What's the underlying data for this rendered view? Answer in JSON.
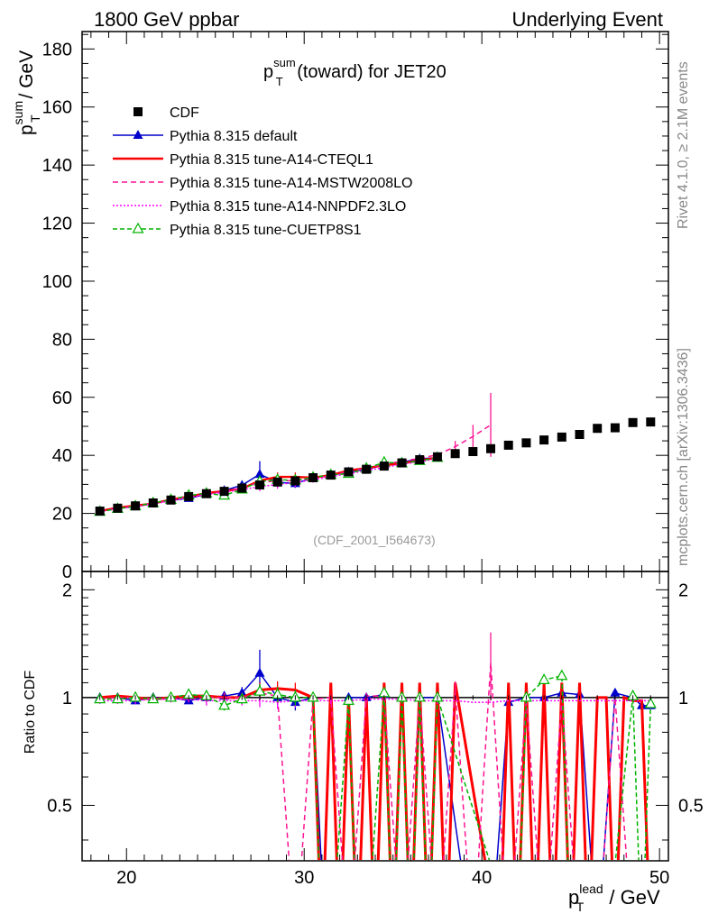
{
  "header": {
    "left": "1800 GeV ppbar",
    "right": "Underlying Event"
  },
  "side_labels": {
    "rivet": "Rivet 4.1.0, ≥ 2.1M events",
    "mcplots": "mcplots.cern.ch [arXiv:1306.3436]"
  },
  "colors": {
    "cdf": "#000000",
    "default": "#0000cc",
    "cteql1": "#ff0000",
    "mstw": "#ff1493",
    "nnpdf": "#ff00ff",
    "cuetp": "#00b300"
  },
  "chart_data": {
    "type": "line",
    "title": {
      "base": "p",
      "sup": "sum",
      "sub": "T",
      "rest": " (toward) for JET20"
    },
    "analysis_tag": "(CDF_2001_I564673)",
    "ylabel": {
      "base": "p",
      "sup": "sum",
      "sub": "T",
      "rest": " / GeV"
    },
    "ratio_ylabel": "Ratio to CDF",
    "xlabel": {
      "base": "p",
      "sup": "lead",
      "sub": "T",
      "rest": " / GeV"
    },
    "xlim": [
      17.5,
      50.5
    ],
    "ylim": [
      0,
      186
    ],
    "ratio_ylim": [
      0.35,
      2.25
    ],
    "x_ticks": [
      20,
      30,
      40,
      50
    ],
    "y_ticks": [
      0,
      20,
      40,
      60,
      80,
      100,
      120,
      140,
      160,
      180
    ],
    "ratio_ticks": [
      0.5,
      1,
      2
    ],
    "ratio_tick_labels": [
      "0.5",
      "1",
      "2"
    ],
    "x_tick_labels": [
      "20",
      "30",
      "40",
      "50"
    ],
    "y_tick_labels": [
      "0",
      "20",
      "40",
      "60",
      "80",
      "100",
      "120",
      "140",
      "160",
      "180"
    ],
    "legend": [
      {
        "key": "cdf",
        "label": "CDF"
      },
      {
        "key": "default",
        "label": "Pythia 8.315 default"
      },
      {
        "key": "cteql1",
        "label": "Pythia 8.315 tune-A14-CTEQL1"
      },
      {
        "key": "mstw",
        "label": "Pythia 8.315 tune-A14-MSTW2008LO"
      },
      {
        "key": "nnpdf",
        "label": "Pythia 8.315 tune-A14-NNPDF2.3LO"
      },
      {
        "key": "cuetp",
        "label": "Pythia 8.315 tune-CUETP8S1"
      }
    ],
    "cdf": {
      "x": [
        18.5,
        19.5,
        20.5,
        21.5,
        22.5,
        23.5,
        24.5,
        25.5,
        26.5,
        27.5,
        28.5,
        29.5,
        30.5,
        31.5,
        32.5,
        33.5,
        34.5,
        35.5,
        36.5,
        37.5,
        38.5,
        39.5,
        40.5,
        41.5,
        42.5,
        43.5,
        44.5,
        45.5,
        46.5,
        47.5,
        48.5,
        49.5
      ],
      "y": [
        20.8,
        21.8,
        22.6,
        23.6,
        24.6,
        25.8,
        26.8,
        27.6,
        28.7,
        29.8,
        30.8,
        31.2,
        32.3,
        33.2,
        34.3,
        35.2,
        36.3,
        37.4,
        38.5,
        39.5,
        40.6,
        41.3,
        42.3,
        43.5,
        44.3,
        45.3,
        46.3,
        47.2,
        49.3,
        49.5,
        51.3,
        51.5
      ]
    },
    "series": [
      {
        "key": "default",
        "marker": "triangle",
        "dash": "",
        "x": [
          18.5,
          19.5,
          20.5,
          21.5,
          22.5,
          23.5,
          24.5,
          25.5,
          26.5,
          27.5,
          28.5,
          29.5,
          30.5,
          31.5,
          32.5,
          33.5,
          34.5,
          35.5,
          36.5,
          37.5
        ],
        "y": [
          20.9,
          21.8,
          22.3,
          23.5,
          24.5,
          25.2,
          26.6,
          27.9,
          29.7,
          33.5,
          30.7,
          30.3,
          32.3,
          33.1,
          34.3,
          35.2,
          36.6,
          37.6,
          38.8,
          39.2
        ],
        "err": [
          0.5,
          0.5,
          0.5,
          0.5,
          0.6,
          0.6,
          0.7,
          0.8,
          1.0,
          4.5,
          1.5,
          1.5,
          1.0,
          0.8,
          0.8,
          0.8,
          0.8,
          0.8,
          0.8,
          0.8
        ],
        "ratio": {
          "x": [
            18.5,
            19.5,
            20.5,
            21.5,
            22.5,
            23.5,
            24.5,
            25.5,
            26.5,
            27.5,
            28.5,
            29.5,
            30.5,
            31.2,
            31.5,
            32.0,
            32.5,
            33.5,
            34.5,
            35.0,
            35.5,
            36.0,
            36.5,
            37.5,
            39.5,
            40.5,
            41.5,
            42.5,
            43.5,
            44.5,
            45.5,
            46.5,
            47.5,
            48.5,
            49.0,
            49.5
          ],
          "y": [
            1.0,
            1.0,
            0.98,
            1.0,
            1.0,
            0.98,
            1.0,
            1.01,
            1.03,
            1.17,
            1.0,
            0.97,
            1.0,
            0.2,
            0.2,
            0.2,
            1.0,
            1.0,
            1.02,
            0.2,
            1.0,
            0.2,
            1.0,
            1.0,
            0.2,
            0.2,
            0.97,
            1.0,
            1.0,
            1.03,
            1.02,
            0.2,
            1.03,
            1.0,
            0.95,
            0.95
          ],
          "err": [
            0.02,
            0.02,
            0.02,
            0.02,
            0.02,
            0.02,
            0.03,
            0.03,
            0.04,
            0.19,
            0.05,
            0.05,
            0.03,
            0,
            0,
            0,
            0.03,
            0.02,
            0.02,
            0,
            0.02,
            0,
            0.02,
            0.02,
            0,
            0,
            0,
            0,
            0,
            0,
            0,
            0,
            0,
            0,
            0,
            0
          ]
        }
      },
      {
        "key": "cteql1",
        "marker": "none",
        "dash": "",
        "x": [
          18.5,
          19.5,
          20.5,
          21.5,
          22.5,
          23.5,
          24.5,
          25.5,
          26.5,
          27.5,
          28.5,
          29.5,
          30.5,
          31.5,
          32.5,
          33.5,
          34.5,
          35.5,
          36.5,
          37.5
        ],
        "y": [
          20.8,
          22.0,
          22.7,
          23.4,
          24.8,
          25.8,
          27.0,
          27.7,
          28.5,
          31.3,
          32.6,
          32.6,
          32.3,
          33.2,
          34.8,
          35.6,
          36.6,
          37.2,
          38.3,
          39.2
        ],
        "err": [
          0.5,
          0.5,
          0.5,
          0.5,
          0.6,
          0.6,
          0.7,
          0.8,
          1.0,
          1.5,
          1.5,
          1.5,
          1.0,
          0.8,
          0.8,
          0.8,
          0.8,
          0.8,
          0.8,
          0.8
        ],
        "ratio": {
          "x": [
            18.5,
            19.5,
            20.5,
            21.5,
            22.5,
            23.5,
            24.5,
            25.5,
            26.5,
            27.5,
            28.5,
            29.5,
            30.5,
            31.0,
            31.5,
            32.0,
            32.5,
            33.0,
            33.5,
            34.0,
            34.5,
            35.0,
            35.5,
            36.0,
            36.5,
            37.0,
            37.5,
            38.0,
            38.5,
            41.0,
            41.5,
            42.0,
            42.5,
            43.0,
            43.5,
            44.0,
            44.5,
            45.0,
            45.5,
            46.0,
            46.5,
            47.0,
            47.5,
            48.0,
            48.5,
            49.0,
            49.5
          ],
          "y": [
            1.0,
            1.01,
            1.0,
            0.99,
            1.0,
            1.01,
            1.01,
            1.0,
            1.0,
            1.05,
            1.06,
            1.05,
            1.0,
            0.2,
            1.1,
            0.2,
            1.0,
            0.2,
            1.0,
            0.2,
            1.1,
            0.2,
            1.1,
            0.2,
            1.1,
            0.2,
            1.1,
            0.2,
            1.1,
            0.2,
            1.1,
            0.2,
            1.1,
            0.2,
            1.1,
            0.2,
            1.1,
            0.2,
            1.1,
            0.2,
            1.0,
            1.0,
            0.2,
            1.0,
            0.98,
            0.98,
            0.2
          ],
          "err": [
            0.02,
            0.02,
            0.02,
            0.02,
            0.02,
            0.02,
            0.03,
            0.03,
            0.03,
            0.05,
            0.05,
            0.05,
            0.03,
            0,
            0,
            0,
            0,
            0,
            0,
            0,
            0,
            0,
            0,
            0,
            0,
            0,
            0,
            0,
            0,
            0,
            0,
            0,
            0,
            0,
            0,
            0,
            0,
            0,
            0,
            0,
            0,
            0,
            0,
            0,
            0,
            0,
            0
          ]
        }
      },
      {
        "key": "mstw",
        "marker": "none",
        "dash": "6,4",
        "x": [
          18.5,
          19.5,
          20.5,
          21.5,
          22.5,
          23.5,
          24.5,
          25.5,
          26.5,
          27.5,
          28.5,
          29.5,
          30.5,
          31.5,
          32.5,
          33.5,
          34.5,
          35.5,
          36.5,
          37.5,
          38.5,
          39.5,
          40.5
        ],
        "y": [
          20.7,
          21.8,
          22.5,
          23.5,
          24.5,
          25.6,
          26.7,
          27.5,
          28.8,
          30.7,
          31.2,
          31.3,
          32.0,
          33.0,
          34.5,
          35.6,
          36.9,
          38.0,
          39.0,
          40.2,
          43.0,
          46.5,
          50.5
        ],
        "err": [
          0.5,
          0.5,
          0.5,
          0.5,
          0.6,
          0.6,
          0.7,
          0.8,
          1.0,
          1.5,
          1.5,
          1.5,
          1.0,
          0.8,
          0.8,
          0.8,
          0.8,
          0.8,
          0.8,
          0.8,
          2,
          4,
          11
        ],
        "ratio": {
          "x": [
            18.5,
            19.5,
            20.5,
            21.5,
            22.5,
            23.5,
            24.5,
            25.5,
            26.5,
            27.5,
            28.5,
            29.5,
            30.5,
            31.5,
            32.5,
            33.5,
            34.5,
            35.5,
            36.5,
            37.5,
            38.5,
            39.5,
            40.5,
            41.5,
            42.5,
            43.5,
            44.5,
            45.5,
            46.5,
            47.5,
            48.5,
            49.5
          ],
          "y": [
            0.99,
            1.0,
            1.0,
            0.99,
            0.99,
            0.99,
            1.0,
            1.0,
            1.0,
            1.03,
            1.01,
            0.2,
            0.99,
            1.0,
            0.2,
            1.01,
            1.01,
            0.2,
            1.01,
            0.2,
            1.06,
            0.2,
            1.25,
            0.2,
            0.99,
            0.2,
            0.99,
            0.2,
            0.2,
            1.0,
            0.2,
            0.2
          ],
          "err": [
            0.02,
            0.02,
            0.02,
            0.02,
            0.02,
            0.02,
            0.03,
            0.03,
            0.03,
            0.05,
            0.05,
            0,
            0.03,
            0.02,
            0,
            0.02,
            0.02,
            0,
            0.02,
            0,
            0.05,
            0,
            0.27,
            0,
            0,
            0,
            0,
            0,
            0,
            0,
            0,
            0
          ]
        }
      },
      {
        "key": "nnpdf",
        "marker": "none",
        "dash": "2,2",
        "x": [
          18.5,
          19.5,
          20.5,
          21.5,
          22.5,
          23.5,
          24.5,
          25.5,
          26.5,
          27.5,
          28.5,
          29.5,
          30.5,
          31.5,
          32.5,
          33.5,
          34.5,
          35.5,
          36.5,
          37.5
        ],
        "y": [
          20.6,
          21.6,
          22.3,
          23.3,
          24.3,
          25.5,
          26.4,
          27.3,
          28.2,
          29.2,
          30.0,
          30.6,
          31.6,
          32.6,
          33.7,
          34.7,
          35.8,
          36.9,
          37.8,
          38.9
        ],
        "err": [
          0.5,
          0.5,
          0.5,
          0.5,
          0.6,
          0.6,
          0.7,
          0.8,
          1.0,
          1.5,
          1.5,
          1.5,
          1.0,
          0.8,
          0.8,
          0.8,
          0.8,
          0.8,
          0.8,
          0.8
        ],
        "ratio": {
          "x": [
            18.5,
            19.5,
            20.5,
            21.5,
            22.5,
            23.5,
            24.5,
            25.5,
            26.5,
            27.5,
            28.5,
            29.5,
            30.5,
            31.5,
            32.5,
            33.5,
            34.5,
            35.5,
            36.5,
            37.5,
            38.5,
            39.5,
            40.5,
            41.5,
            42.5,
            43.5,
            44.5,
            45.5,
            46.5,
            47.5,
            48.5,
            49.5
          ],
          "y": [
            0.98,
            0.98,
            0.98,
            0.99,
            0.99,
            0.99,
            0.98,
            0.98,
            0.98,
            0.98,
            0.97,
            0.98,
            0.98,
            0.98,
            0.98,
            0.99,
            0.99,
            0.99,
            0.98,
            0.98,
            0.98,
            0.97,
            0.97,
            0.98,
            0.98,
            0.98,
            0.98,
            0.98,
            0.98,
            0.98,
            0.98,
            0.98
          ],
          "err": [
            0.02,
            0.02,
            0.02,
            0.02,
            0.02,
            0.02,
            0.03,
            0.03,
            0.03,
            0.04,
            0.04,
            0.04,
            0.03,
            0.02,
            0.02,
            0.02,
            0.02,
            0.02,
            0.02,
            0.02,
            0,
            0,
            0,
            0,
            0,
            0,
            0,
            0,
            0,
            0,
            0,
            0
          ]
        }
      },
      {
        "key": "cuetp",
        "marker": "opentriangle",
        "dash": "5,3",
        "x": [
          18.5,
          19.5,
          20.5,
          21.5,
          22.5,
          23.5,
          24.5,
          25.5,
          26.5,
          27.5,
          28.5,
          29.5,
          30.5,
          31.5,
          32.5,
          33.5,
          34.5,
          35.5,
          36.5,
          37.5
        ],
        "y": [
          20.6,
          21.6,
          22.5,
          23.6,
          24.7,
          26.2,
          26.9,
          26.2,
          28.3,
          31.0,
          31.6,
          31.4,
          32.4,
          33.3,
          33.7,
          35.5,
          37.6,
          37.3,
          38.1,
          39.2
        ],
        "err": [
          0.5,
          0.5,
          0.5,
          0.5,
          0.6,
          0.6,
          0.7,
          0.8,
          1.0,
          1.5,
          1.5,
          1.5,
          1.0,
          0.8,
          0.8,
          0.8,
          0.8,
          0.8,
          0.8,
          0.8
        ],
        "ratio": {
          "x": [
            18.5,
            19.5,
            20.5,
            21.5,
            22.5,
            23.5,
            24.5,
            25.5,
            26.5,
            27.5,
            28.5,
            29.5,
            30.5,
            31.0,
            31.5,
            32.5,
            33.0,
            33.5,
            34.5,
            35.0,
            35.5,
            36.0,
            36.5,
            37.0,
            37.5,
            42.0,
            42.5,
            43.5,
            44.5,
            45.0,
            45.5,
            46.0,
            46.5,
            47.0,
            48.5,
            49.0,
            49.5
          ],
          "y": [
            0.99,
            0.99,
            1.0,
            0.99,
            1.0,
            1.02,
            1.01,
            0.95,
            0.99,
            1.04,
            1.02,
            1.0,
            1.0,
            0.2,
            0.2,
            0.98,
            0.2,
            0.2,
            1.03,
            0.2,
            1.0,
            0.2,
            1.0,
            0.2,
            1.0,
            0.2,
            1.0,
            1.12,
            1.15,
            0.2,
            0.2,
            0.2,
            0.2,
            0.2,
            1.01,
            0.2,
            0.96
          ],
          "err": [
            0.02,
            0.02,
            0.02,
            0.02,
            0.02,
            0.03,
            0.03,
            0.03,
            0.03,
            0.05,
            0.05,
            0.05,
            0.03,
            0,
            0,
            0.02,
            0,
            0,
            0.03,
            0,
            0.02,
            0,
            0.02,
            0,
            0.02,
            0,
            0,
            0,
            0,
            0,
            0,
            0,
            0,
            0,
            0,
            0,
            0
          ]
        }
      }
    ]
  }
}
